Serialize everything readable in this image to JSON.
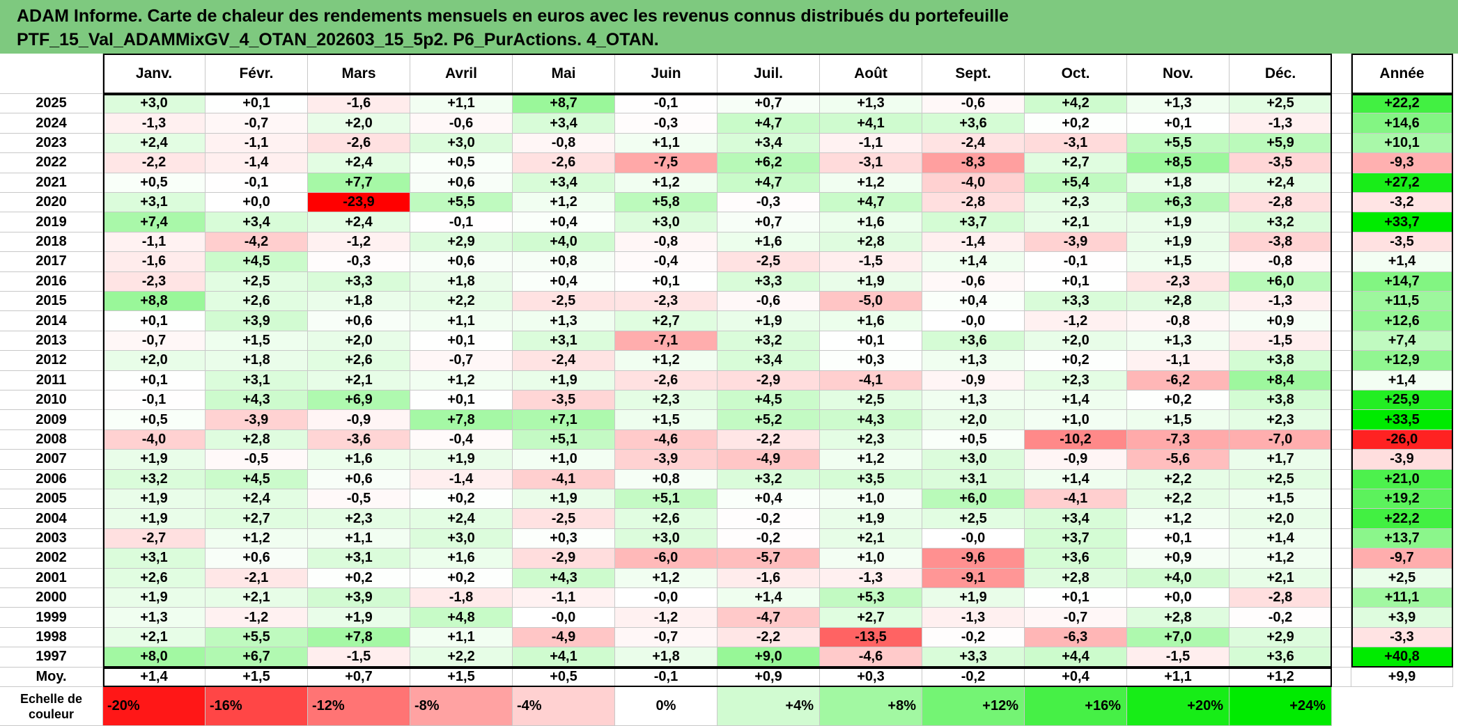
{
  "title": {
    "line1": "ADAM Informe. Carte de chaleur des rendements mensuels en euros avec les revenus connus distribués du portefeuille",
    "line2": "PTF_15_Val_ADAMMixGV_4_OTAN_202603_15_5p2. P6_PurActions. 4_OTAN."
  },
  "colors": {
    "negative_max": "#ff0000",
    "neutral": "#ffffff",
    "positive_max": "#00e000",
    "title_bg": "#7ec97f"
  },
  "chart_data": {
    "type": "heatmap",
    "title": "ADAM Informe. Carte de chaleur des rendements mensuels en euros avec les revenus connus distribués du portefeuille PTF_15_Val_ADAMMixGV_4_OTAN_202603_15_5p2. P6_PurActions. 4_OTAN.",
    "columns": [
      "Janv.",
      "Févr.",
      "Mars",
      "Avril",
      "Mai",
      "Juin",
      "Juil.",
      "Août",
      "Sept.",
      "Oct.",
      "Nov.",
      "Déc."
    ],
    "year_header": "Année",
    "rows": [
      {
        "label": "2025",
        "values": [
          "+3,0",
          "+0,1",
          "-1,6",
          "+1,1",
          "+8,7",
          "-0,1",
          "+0,7",
          "+1,3",
          "-0,6",
          "+4,2",
          "+1,3",
          "+2,5"
        ],
        "year": "+22,2"
      },
      {
        "label": "2024",
        "values": [
          "-1,3",
          "-0,7",
          "+2,0",
          "-0,6",
          "+3,4",
          "-0,3",
          "+4,7",
          "+4,1",
          "+3,6",
          "+0,2",
          "+0,1",
          "-1,3"
        ],
        "year": "+14,6"
      },
      {
        "label": "2023",
        "values": [
          "+2,4",
          "-1,1",
          "-2,6",
          "+3,0",
          "-0,8",
          "+1,1",
          "+3,4",
          "-1,1",
          "-2,4",
          "-3,1",
          "+5,5",
          "+5,9"
        ],
        "year": "+10,1"
      },
      {
        "label": "2022",
        "values": [
          "-2,2",
          "-1,4",
          "+2,4",
          "+0,5",
          "-2,6",
          "-7,5",
          "+6,2",
          "-3,1",
          "-8,3",
          "+2,7",
          "+8,5",
          "-3,5"
        ],
        "year": "-9,3"
      },
      {
        "label": "2021",
        "values": [
          "+0,5",
          "-0,1",
          "+7,7",
          "+0,6",
          "+3,4",
          "+1,2",
          "+4,7",
          "+1,2",
          "-4,0",
          "+5,4",
          "+1,8",
          "+2,4"
        ],
        "year": "+27,2"
      },
      {
        "label": "2020",
        "values": [
          "+3,1",
          "+0,0",
          "-23,9",
          "+5,5",
          "+1,2",
          "+5,8",
          "-0,3",
          "+4,7",
          "-2,8",
          "+2,3",
          "+6,3",
          "-2,8"
        ],
        "year": "-3,2"
      },
      {
        "label": "2019",
        "values": [
          "+7,4",
          "+3,4",
          "+2,4",
          "-0,1",
          "+0,4",
          "+3,0",
          "+0,7",
          "+1,6",
          "+3,7",
          "+2,1",
          "+1,9",
          "+3,2"
        ],
        "year": "+33,7"
      },
      {
        "label": "2018",
        "values": [
          "-1,1",
          "-4,2",
          "-1,2",
          "+2,9",
          "+4,0",
          "-0,8",
          "+1,6",
          "+2,8",
          "-1,4",
          "-3,9",
          "+1,9",
          "-3,8"
        ],
        "year": "-3,5"
      },
      {
        "label": "2017",
        "values": [
          "-1,6",
          "+4,5",
          "-0,3",
          "+0,6",
          "+0,8",
          "-0,4",
          "-2,5",
          "-1,5",
          "+1,4",
          "-0,1",
          "+1,5",
          "-0,8"
        ],
        "year": "+1,4"
      },
      {
        "label": "2016",
        "values": [
          "-2,3",
          "+2,5",
          "+3,3",
          "+1,8",
          "+0,4",
          "+0,1",
          "+3,3",
          "+1,9",
          "-0,6",
          "+0,1",
          "-2,3",
          "+6,0"
        ],
        "year": "+14,7"
      },
      {
        "label": "2015",
        "values": [
          "+8,8",
          "+2,6",
          "+1,8",
          "+2,2",
          "-2,5",
          "-2,3",
          "-0,6",
          "-5,0",
          "+0,4",
          "+3,3",
          "+2,8",
          "-1,3"
        ],
        "year": "+11,5"
      },
      {
        "label": "2014",
        "values": [
          "+0,1",
          "+3,9",
          "+0,6",
          "+1,1",
          "+1,3",
          "+2,7",
          "+1,9",
          "+1,6",
          "-0,0",
          "-1,2",
          "-0,8",
          "+0,9"
        ],
        "year": "+12,6"
      },
      {
        "label": "2013",
        "values": [
          "-0,7",
          "+1,5",
          "+2,0",
          "+0,1",
          "+3,1",
          "-7,1",
          "+3,2",
          "+0,1",
          "+3,6",
          "+2,0",
          "+1,3",
          "-1,5"
        ],
        "year": "+7,4"
      },
      {
        "label": "2012",
        "values": [
          "+2,0",
          "+1,8",
          "+2,6",
          "-0,7",
          "-2,4",
          "+1,2",
          "+3,4",
          "+0,3",
          "+1,3",
          "+0,2",
          "-1,1",
          "+3,8"
        ],
        "year": "+12,9"
      },
      {
        "label": "2011",
        "values": [
          "+0,1",
          "+3,1",
          "+2,1",
          "+1,2",
          "+1,9",
          "-2,6",
          "-2,9",
          "-4,1",
          "-0,9",
          "+2,3",
          "-6,2",
          "+8,4"
        ],
        "year": "+1,4"
      },
      {
        "label": "2010",
        "values": [
          "-0,1",
          "+4,3",
          "+6,9",
          "+0,1",
          "-3,5",
          "+2,3",
          "+4,5",
          "+2,5",
          "+1,3",
          "+1,4",
          "+0,2",
          "+3,8"
        ],
        "year": "+25,9"
      },
      {
        "label": "2009",
        "values": [
          "+0,5",
          "-3,9",
          "-0,9",
          "+7,8",
          "+7,1",
          "+1,5",
          "+5,2",
          "+4,3",
          "+2,0",
          "+1,0",
          "+1,5",
          "+2,3"
        ],
        "year": "+33,5"
      },
      {
        "label": "2008",
        "values": [
          "-4,0",
          "+2,8",
          "-3,6",
          "-0,4",
          "+5,1",
          "-4,6",
          "-2,2",
          "+2,3",
          "+0,5",
          "-10,2",
          "-7,3",
          "-7,0"
        ],
        "year": "-26,0"
      },
      {
        "label": "2007",
        "values": [
          "+1,9",
          "-0,5",
          "+1,6",
          "+1,9",
          "+1,0",
          "-3,9",
          "-4,9",
          "+1,2",
          "+3,0",
          "-0,9",
          "-5,6",
          "+1,7"
        ],
        "year": "-3,9"
      },
      {
        "label": "2006",
        "values": [
          "+3,2",
          "+4,5",
          "+0,6",
          "-1,4",
          "-4,1",
          "+0,8",
          "+3,2",
          "+3,5",
          "+3,1",
          "+1,4",
          "+2,2",
          "+2,5"
        ],
        "year": "+21,0"
      },
      {
        "label": "2005",
        "values": [
          "+1,9",
          "+2,4",
          "-0,5",
          "+0,2",
          "+1,9",
          "+5,1",
          "+0,4",
          "+1,0",
          "+6,0",
          "-4,1",
          "+2,2",
          "+1,5"
        ],
        "year": "+19,2"
      },
      {
        "label": "2004",
        "values": [
          "+1,9",
          "+2,7",
          "+2,3",
          "+2,4",
          "-2,5",
          "+2,6",
          "-0,2",
          "+1,9",
          "+2,5",
          "+3,4",
          "+1,2",
          "+2,0"
        ],
        "year": "+22,2"
      },
      {
        "label": "2003",
        "values": [
          "-2,7",
          "+1,2",
          "+1,1",
          "+3,0",
          "+0,3",
          "+3,0",
          "-0,2",
          "+2,1",
          "-0,0",
          "+3,7",
          "+0,1",
          "+1,4"
        ],
        "year": "+13,7"
      },
      {
        "label": "2002",
        "values": [
          "+3,1",
          "+0,6",
          "+3,1",
          "+1,6",
          "-2,9",
          "-6,0",
          "-5,7",
          "+1,0",
          "-9,6",
          "+3,6",
          "+0,9",
          "+1,2"
        ],
        "year": "-9,7"
      },
      {
        "label": "2001",
        "values": [
          "+2,6",
          "-2,1",
          "+0,2",
          "+0,2",
          "+4,3",
          "+1,2",
          "-1,6",
          "-1,3",
          "-9,1",
          "+2,8",
          "+4,0",
          "+2,1"
        ],
        "year": "+2,5"
      },
      {
        "label": "2000",
        "values": [
          "+1,9",
          "+2,1",
          "+3,9",
          "-1,8",
          "-1,1",
          "-0,0",
          "+1,4",
          "+5,3",
          "+1,9",
          "+0,1",
          "+0,0",
          "-2,8"
        ],
        "year": "+11,1"
      },
      {
        "label": "1999",
        "values": [
          "+1,3",
          "-1,2",
          "+1,9",
          "+4,8",
          "-0,0",
          "-1,2",
          "-4,7",
          "+2,7",
          "-1,3",
          "-0,7",
          "+2,8",
          "-0,2"
        ],
        "year": "+3,9"
      },
      {
        "label": "1998",
        "values": [
          "+2,1",
          "+5,5",
          "+7,8",
          "+1,1",
          "-4,9",
          "-0,7",
          "-2,2",
          "-13,5",
          "-0,2",
          "-6,3",
          "+7,0",
          "+2,9"
        ],
        "year": "-3,3"
      },
      {
        "label": "1997",
        "values": [
          "+8,0",
          "+6,7",
          "-1,5",
          "+2,2",
          "+4,1",
          "+1,8",
          "+9,0",
          "-4,6",
          "+3,3",
          "+4,4",
          "-1,5",
          "+3,6"
        ],
        "year": "+40,8"
      }
    ],
    "average": {
      "label": "Moy.",
      "values": [
        "+1,4",
        "+1,5",
        "+0,7",
        "+1,5",
        "+0,5",
        "-0,1",
        "+0,9",
        "+0,3",
        "-0,2",
        "+0,4",
        "+1,1",
        "+1,2"
      ],
      "year": "+9,9"
    },
    "legend": {
      "label": "Echelle de couleur",
      "items": [
        {
          "text": "-20%",
          "value": -20
        },
        {
          "text": "-16%",
          "value": -16
        },
        {
          "text": "-12%",
          "value": -12
        },
        {
          "text": "-8%",
          "value": -8
        },
        {
          "text": "-4%",
          "value": -4
        },
        {
          "text": "0%",
          "value": 0
        },
        {
          "text": "+4%",
          "value": 4
        },
        {
          "text": "+8%",
          "value": 8
        },
        {
          "text": "+12%",
          "value": 12
        },
        {
          "text": "+16%",
          "value": 16
        },
        {
          "text": "+20%",
          "value": 20
        },
        {
          "text": "+24%",
          "value": 24
        }
      ]
    }
  }
}
